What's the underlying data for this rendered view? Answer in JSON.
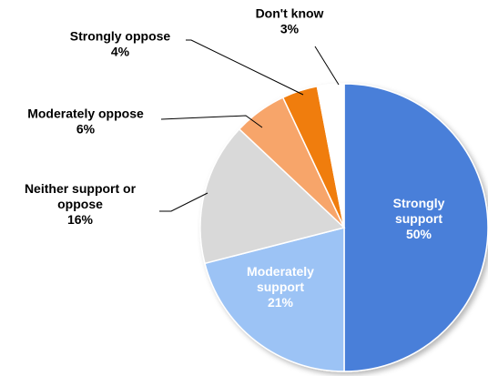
{
  "chart_data": {
    "type": "pie",
    "slices": [
      {
        "label_lines": [
          "Strongly",
          "support"
        ],
        "value": 50,
        "value_label": "50%",
        "color": "#4a7fd9",
        "label_color": "#ffffff"
      },
      {
        "label_lines": [
          "Moderately",
          "support"
        ],
        "value": 21,
        "value_label": "21%",
        "color": "#9cc3f5",
        "label_color": "#ffffff"
      },
      {
        "label_lines": [
          "Neither support or",
          "oppose"
        ],
        "value": 16,
        "value_label": "16%",
        "color": "#d9d9d9",
        "label_color": "#000000"
      },
      {
        "label_lines": [
          "Moderately oppose"
        ],
        "value": 6,
        "value_label": "6%",
        "color": "#f7a56b",
        "label_color": "#000000"
      },
      {
        "label_lines": [
          "Strongly oppose"
        ],
        "value": 4,
        "value_label": "4%",
        "color": "#f07d10",
        "label_color": "#000000"
      },
      {
        "label_lines": [
          "Don't know"
        ],
        "value": 3,
        "value_label": "3%",
        "color": "#ffffff",
        "label_color": "#000000"
      }
    ]
  }
}
